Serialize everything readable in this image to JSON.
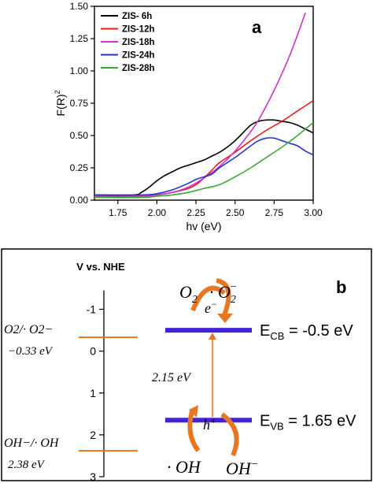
{
  "chart_data": [
    {
      "type": "line",
      "panel_label": "a",
      "xlabel": "hv (eV)",
      "ylabel": "F(R)",
      "ylabel_sup": "2",
      "xlim": [
        1.6,
        3.0
      ],
      "ylim": [
        0.0,
        1.5
      ],
      "xticks": [
        "1.75",
        "2.00",
        "2.25",
        "2.50",
        "2.75",
        "3.00"
      ],
      "yticks": [
        "0.00",
        "0.25",
        "0.50",
        "0.75",
        "1.00",
        "1.25",
        "1.50"
      ],
      "legend_position": "top-left",
      "series": [
        {
          "name": "ZIS- 6h",
          "color": "#000000",
          "x": [
            1.6,
            1.85,
            1.9,
            1.95,
            2.0,
            2.05,
            2.1,
            2.15,
            2.2,
            2.25,
            2.3,
            2.35,
            2.4,
            2.45,
            2.5,
            2.55,
            2.6,
            2.65,
            2.7,
            2.75,
            2.8,
            2.85,
            2.9,
            2.95,
            3.0
          ],
          "y": [
            0.04,
            0.04,
            0.06,
            0.1,
            0.15,
            0.19,
            0.22,
            0.25,
            0.27,
            0.29,
            0.31,
            0.34,
            0.37,
            0.41,
            0.46,
            0.52,
            0.58,
            0.61,
            0.62,
            0.62,
            0.61,
            0.6,
            0.58,
            0.55,
            0.52
          ]
        },
        {
          "name": "ZIS-12h",
          "color": "#e8201a",
          "x": [
            1.6,
            1.9,
            2.0,
            2.1,
            2.2,
            2.25,
            2.3,
            2.35,
            2.4,
            2.5,
            2.6,
            2.7,
            2.8,
            2.9,
            3.0
          ],
          "y": [
            0.03,
            0.03,
            0.04,
            0.06,
            0.09,
            0.12,
            0.17,
            0.23,
            0.29,
            0.37,
            0.46,
            0.54,
            0.61,
            0.69,
            0.77
          ]
        },
        {
          "name": "ZIS-18h",
          "color": "#cc33cc",
          "x": [
            1.6,
            1.9,
            2.0,
            2.1,
            2.2,
            2.3,
            2.4,
            2.5,
            2.6,
            2.65,
            2.7,
            2.75,
            2.8,
            2.85,
            2.9,
            2.95
          ],
          "y": [
            0.03,
            0.03,
            0.04,
            0.06,
            0.1,
            0.17,
            0.26,
            0.38,
            0.53,
            0.62,
            0.73,
            0.85,
            0.98,
            1.12,
            1.28,
            1.45
          ]
        },
        {
          "name": "ZIS-24h",
          "color": "#2233cc",
          "x": [
            1.6,
            1.9,
            2.0,
            2.1,
            2.2,
            2.25,
            2.3,
            2.35,
            2.4,
            2.5,
            2.6,
            2.65,
            2.7,
            2.75,
            2.8,
            2.85,
            2.9,
            2.95,
            3.0
          ],
          "y": [
            0.04,
            0.04,
            0.05,
            0.08,
            0.13,
            0.16,
            0.18,
            0.2,
            0.25,
            0.33,
            0.42,
            0.46,
            0.48,
            0.48,
            0.46,
            0.44,
            0.42,
            0.38,
            0.35
          ]
        },
        {
          "name": "ZIS-28h",
          "color": "#3aaa35",
          "x": [
            1.6,
            1.9,
            2.0,
            2.1,
            2.2,
            2.3,
            2.4,
            2.5,
            2.6,
            2.7,
            2.8,
            2.9,
            3.0
          ],
          "y": [
            0.02,
            0.02,
            0.03,
            0.04,
            0.06,
            0.09,
            0.12,
            0.18,
            0.25,
            0.33,
            0.41,
            0.5,
            0.6
          ]
        }
      ]
    },
    {
      "type": "diagram",
      "panel_label": "b",
      "axis_title": "V vs. NHE",
      "axis_range": [
        -1.8,
        3.0
      ],
      "axis_ticks": [
        "-1",
        "0",
        "1",
        "2",
        "3"
      ],
      "references": [
        {
          "value": -0.33,
          "label_top": "O2/· O2−",
          "label_bottom": "−0.33 eV",
          "color": "#e87722"
        },
        {
          "value": 2.38,
          "label_top": "OH−/· OH",
          "label_bottom": "2.38 eV",
          "color": "#e87722"
        }
      ],
      "bands": [
        {
          "name": "E_CB",
          "value": -0.5,
          "label": "E",
          "subscript": "CB",
          "value_text": "= -0.5 eV",
          "color": "#4422dd"
        },
        {
          "name": "E_VB",
          "value": 1.65,
          "label": "E",
          "subscript": "VB",
          "value_text": "= 1.65 eV",
          "color": "#4422dd"
        }
      ],
      "gap_label": "2.15 eV",
      "cb_reaction": {
        "left": "O",
        "left_sub": "2",
        "right": "· O",
        "right_sub": "2",
        "right_sup": "−",
        "carrier": "e",
        "carrier_sup": "−"
      },
      "vb_reaction": {
        "left": "· OH",
        "right": "OH",
        "right_sup": "−",
        "carrier": "h",
        "carrier_sup": "+"
      },
      "arrow_color": "#e87722"
    }
  ]
}
